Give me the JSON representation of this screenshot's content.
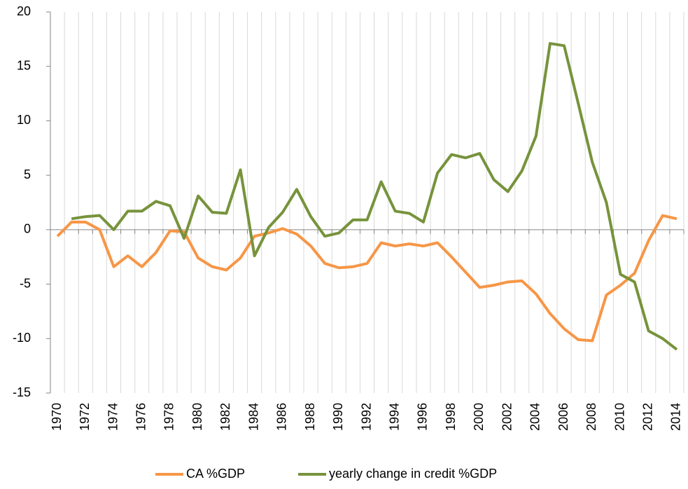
{
  "chart_data": {
    "type": "line",
    "categories": [
      "1970",
      null,
      "1972",
      null,
      "1974",
      null,
      "1976",
      null,
      "1978",
      null,
      "1980",
      null,
      "1982",
      null,
      "1984",
      null,
      "1986",
      null,
      "1988",
      null,
      "1990",
      null,
      "1992",
      null,
      "1994",
      null,
      "1996",
      null,
      "1998",
      null,
      "2000",
      null,
      "2002",
      null,
      "2004",
      null,
      "2006",
      null,
      "2008",
      null,
      "2010",
      null,
      "2012",
      null,
      "2014"
    ],
    "series": [
      {
        "name": "CA %GDP",
        "color": "#f79646",
        "values": [
          -0.6,
          0.7,
          0.7,
          0,
          -3.4,
          -2.4,
          -3.4,
          -2.1,
          -0.1,
          -0.2,
          -2.6,
          -3.4,
          -3.7,
          -2.6,
          -0.6,
          -0.3,
          0.1,
          -0.4,
          -1.5,
          -3.1,
          -3.5,
          -3.4,
          -3.1,
          -1.2,
          -1.5,
          -1.3,
          -1.5,
          -1.2,
          -2.5,
          -3.9,
          -5.3,
          -5.1,
          -4.8,
          -4.7,
          -5.9,
          -7.7,
          -9.1,
          -10.1,
          -10.2,
          -6.0,
          -5.1,
          -4.0,
          -1.0,
          1.3,
          1.0
        ]
      },
      {
        "name": "yearly change in credit %GDP",
        "color": "#77933c",
        "values": [
          null,
          1.0,
          1.2,
          1.3,
          0,
          1.7,
          1.7,
          2.6,
          2.2,
          -0.8,
          3.1,
          1.6,
          1.5,
          5.5,
          -2.4,
          0.2,
          1.6,
          3.7,
          1.2,
          -0.6,
          -0.3,
          0.9,
          0.9,
          4.4,
          1.7,
          1.5,
          0.7,
          5.2,
          6.9,
          6.6,
          7.0,
          4.6,
          3.5,
          5.4,
          8.6,
          17.1,
          16.9,
          11.6,
          6.2,
          2.5,
          -4.1,
          -4.8,
          -9.3,
          -10.0,
          -11.0
        ]
      }
    ],
    "ylim": [
      -15,
      20
    ],
    "yticks": [
      -15,
      -10,
      -5,
      0,
      5,
      10,
      15,
      20
    ],
    "grid": true,
    "legend": "bottom"
  }
}
